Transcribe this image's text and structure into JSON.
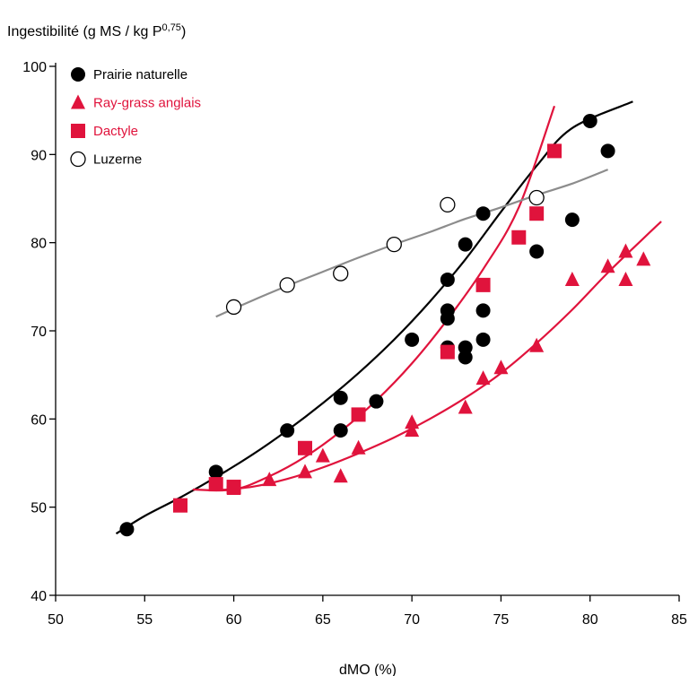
{
  "chart_data": {
    "type": "scatter",
    "title": "",
    "ylabel": "Ingestibilité (g MS / kg P",
    "ylabel_sup": "0,75",
    "ylabel_close": ")",
    "xlabel": "dMO (%)",
    "xlim": [
      50,
      85
    ],
    "ylim": [
      40,
      100
    ],
    "xticks": [
      50,
      55,
      60,
      65,
      70,
      75,
      80,
      85
    ],
    "yticks": [
      40,
      50,
      60,
      70,
      80,
      90,
      100
    ],
    "grid": false,
    "legend_position": "top-left",
    "series": [
      {
        "name": "Prairie naturelle",
        "marker": "circle-filled",
        "color": "#000000",
        "points": [
          [
            54,
            47.5
          ],
          [
            59,
            54
          ],
          [
            60,
            52.2
          ],
          [
            63,
            58.7
          ],
          [
            66,
            62.4
          ],
          [
            66,
            58.7
          ],
          [
            68,
            62
          ],
          [
            70,
            69
          ],
          [
            72,
            75.8
          ],
          [
            72,
            72.3
          ],
          [
            72,
            71.4
          ],
          [
            72,
            68.1
          ],
          [
            73,
            79.8
          ],
          [
            73,
            68.1
          ],
          [
            73,
            67
          ],
          [
            74,
            83.3
          ],
          [
            74,
            72.3
          ],
          [
            74,
            69
          ],
          [
            77,
            79
          ],
          [
            79,
            82.6
          ],
          [
            80,
            93.8
          ],
          [
            81,
            90.4
          ]
        ],
        "fit": [
          [
            53.4,
            47
          ],
          [
            55,
            49
          ],
          [
            57,
            51.1
          ],
          [
            59,
            53.4
          ],
          [
            61,
            55.9
          ],
          [
            63,
            58.7
          ],
          [
            65,
            61.8
          ],
          [
            67,
            65.2
          ],
          [
            69,
            69
          ],
          [
            71,
            73.3
          ],
          [
            73,
            78.1
          ],
          [
            75,
            83.5
          ],
          [
            77,
            88.7
          ],
          [
            79,
            93
          ],
          [
            82.4,
            96
          ]
        ]
      },
      {
        "name": "Ray-grass anglais",
        "marker": "triangle-filled",
        "color": "#e0133c",
        "points": [
          [
            60,
            52.1
          ],
          [
            62,
            53.1
          ],
          [
            64,
            54
          ],
          [
            65,
            55.8
          ],
          [
            66,
            53.5
          ],
          [
            67,
            56.7
          ],
          [
            70,
            59.6
          ],
          [
            70,
            58.7
          ],
          [
            73,
            61.3
          ],
          [
            74,
            64.6
          ],
          [
            75,
            65.8
          ],
          [
            77,
            68.3
          ],
          [
            79,
            75.8
          ],
          [
            81,
            77.3
          ],
          [
            82,
            79
          ],
          [
            82,
            75.8
          ],
          [
            83,
            78.1
          ]
        ],
        "fit": [
          [
            59,
            51.9
          ],
          [
            61,
            52.3
          ],
          [
            63,
            53.2
          ],
          [
            65,
            54.5
          ],
          [
            67,
            56.1
          ],
          [
            69,
            57.9
          ],
          [
            71,
            60
          ],
          [
            73,
            62.4
          ],
          [
            75,
            65.2
          ],
          [
            77,
            68.6
          ],
          [
            79,
            72.4
          ],
          [
            81,
            76.6
          ],
          [
            83,
            80.5
          ],
          [
            84,
            82.4
          ]
        ]
      },
      {
        "name": "Dactyle",
        "marker": "square-filled",
        "color": "#e0133c",
        "points": [
          [
            57,
            50.2
          ],
          [
            59,
            52.6
          ],
          [
            60,
            52.3
          ],
          [
            64,
            56.7
          ],
          [
            67,
            60.5
          ],
          [
            72,
            67.6
          ],
          [
            74,
            75.2
          ],
          [
            76,
            80.6
          ],
          [
            77,
            83.3
          ],
          [
            78,
            90.4
          ]
        ],
        "fit": [
          [
            57.7,
            52
          ],
          [
            60,
            52
          ],
          [
            62,
            53.5
          ],
          [
            64,
            55.7
          ],
          [
            66,
            58.6
          ],
          [
            68,
            62.1
          ],
          [
            70,
            66.3
          ],
          [
            72,
            71.3
          ],
          [
            74,
            77
          ],
          [
            76,
            84
          ],
          [
            78,
            95.5
          ]
        ]
      },
      {
        "name": "Luzerne",
        "marker": "circle-open",
        "color": "#000000",
        "points": [
          [
            60,
            72.7
          ],
          [
            63,
            75.2
          ],
          [
            66,
            76.5
          ],
          [
            69,
            79.8
          ],
          [
            72,
            84.3
          ],
          [
            77,
            85.1
          ]
        ],
        "fit": [
          [
            59,
            71.6
          ],
          [
            61,
            73.4
          ],
          [
            63,
            75.1
          ],
          [
            65,
            76.7
          ],
          [
            67,
            78.3
          ],
          [
            69,
            79.8
          ],
          [
            71,
            81.2
          ],
          [
            73,
            82.7
          ],
          [
            75,
            84
          ],
          [
            77,
            85.4
          ],
          [
            79,
            86.7
          ],
          [
            81,
            88.3
          ]
        ],
        "fit_color": "#8c8c8c"
      }
    ]
  }
}
